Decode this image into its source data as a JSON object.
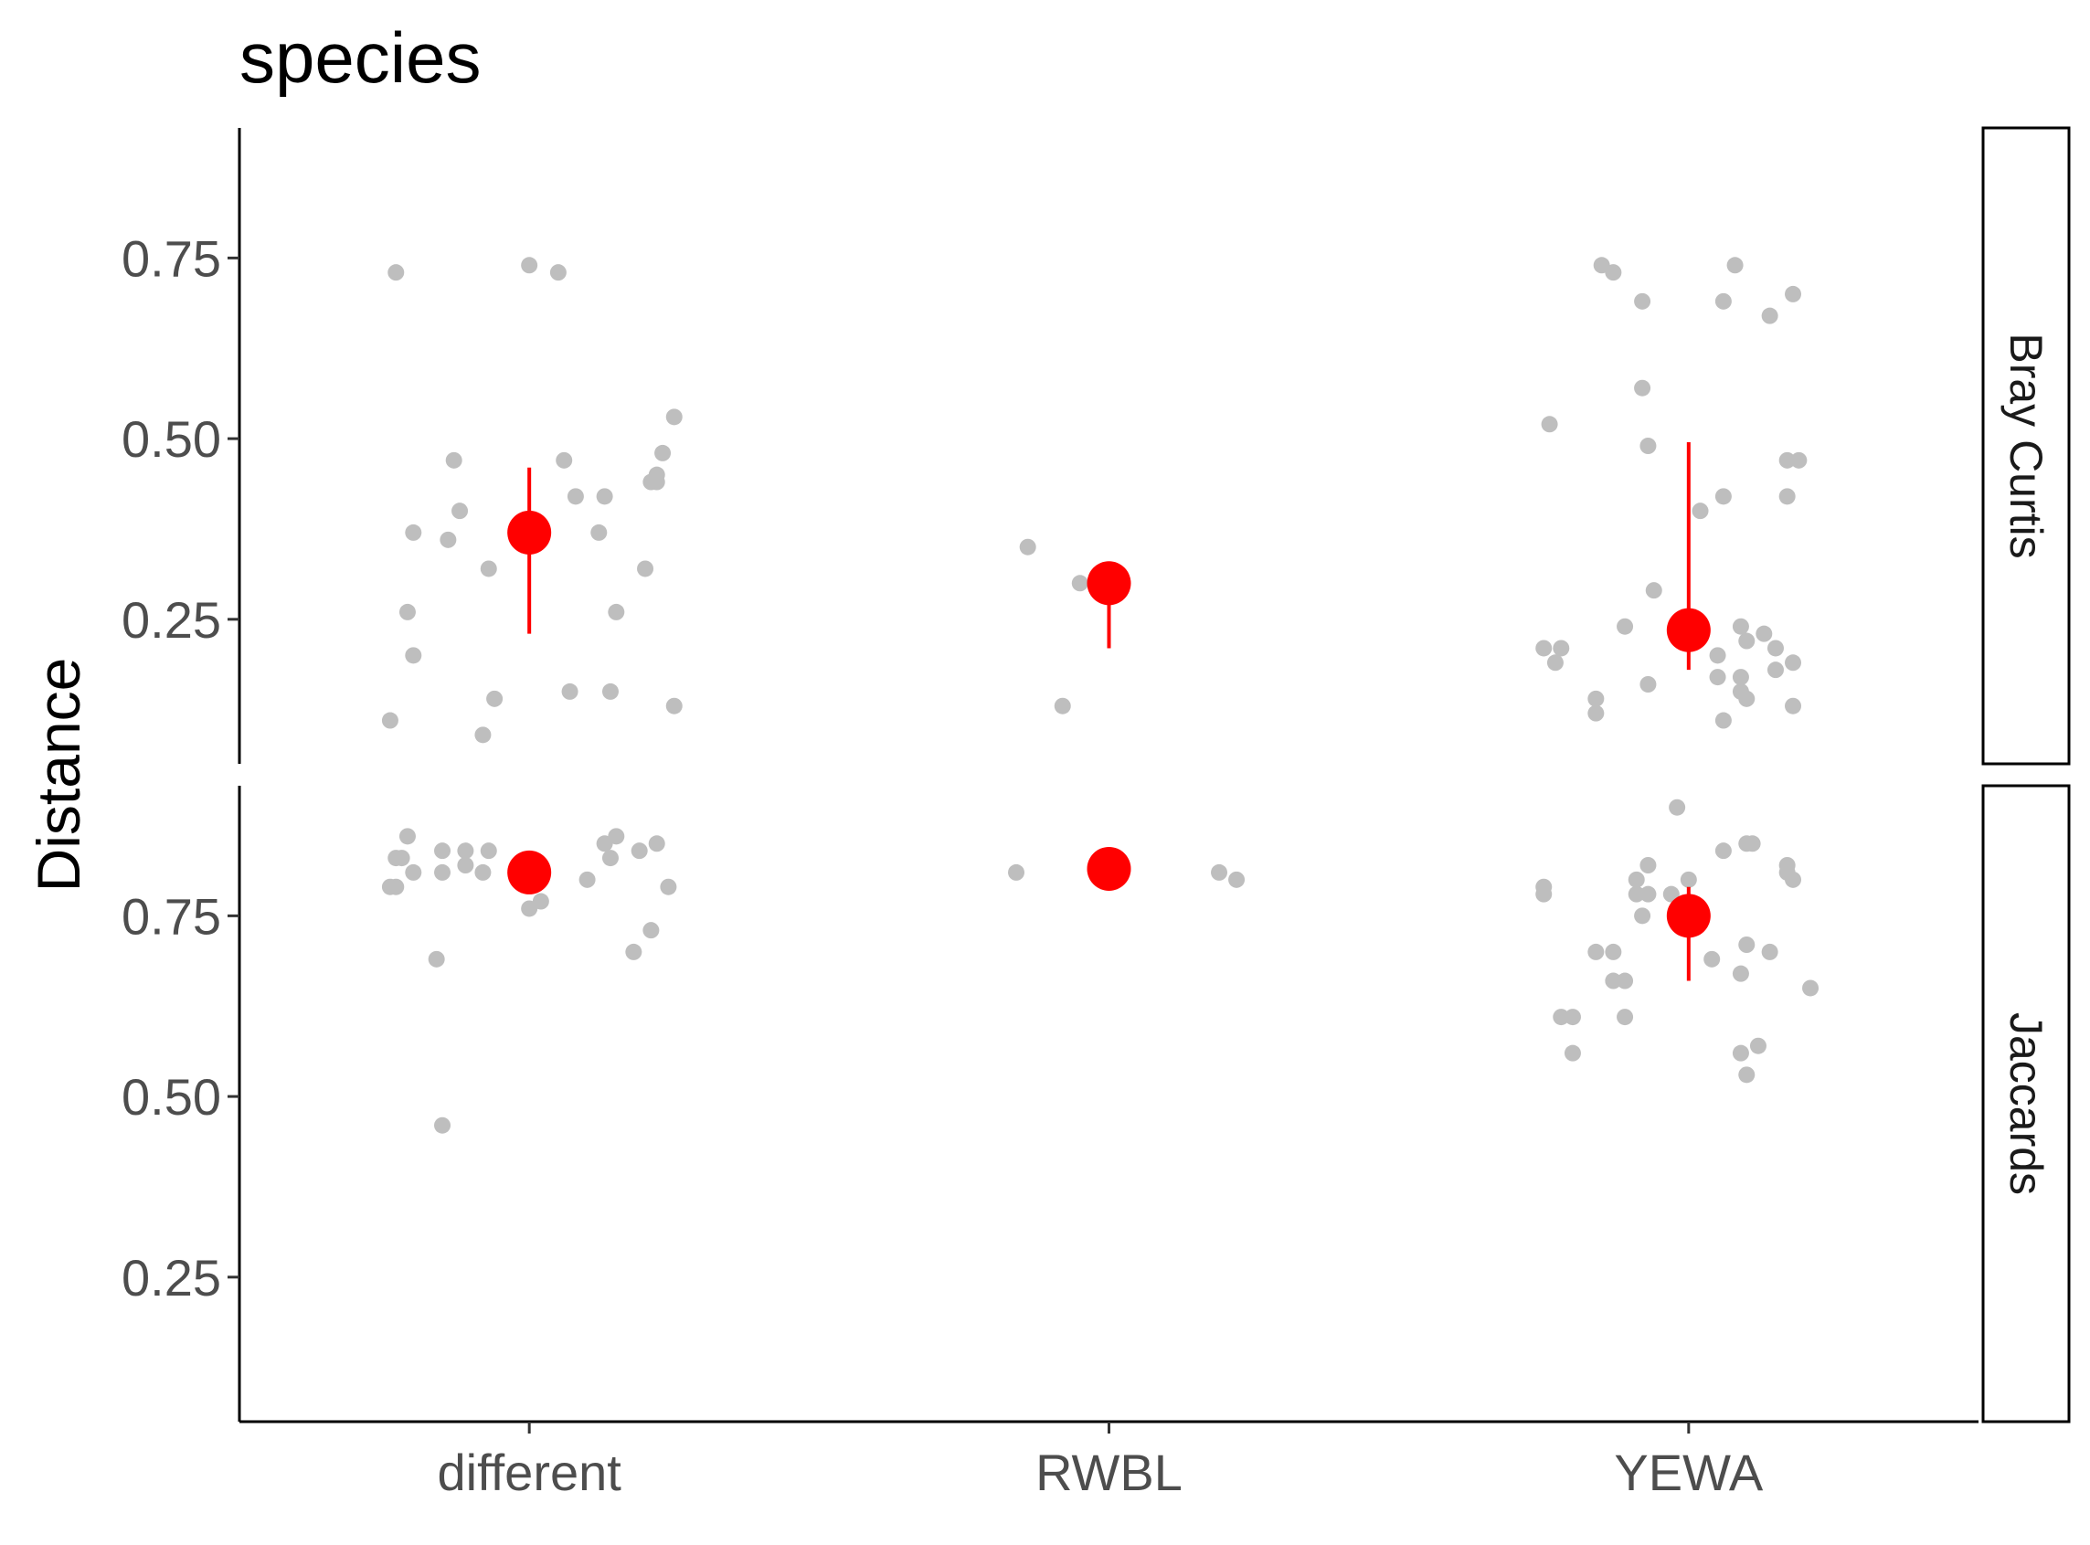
{
  "chart_data": {
    "type": "scatter",
    "title": "species",
    "xlabel": "",
    "ylabel": "Distance",
    "categories": [
      "different",
      "RWBL",
      "YEWA"
    ],
    "ylim": [
      0.05,
      0.93
    ],
    "yticks": [
      "0.25",
      "0.50",
      "0.75"
    ],
    "grid": false,
    "legend": "none",
    "point_color": "#bebebe",
    "summary_color": "#ff0000",
    "facets": [
      {
        "name": "Bray Curtis",
        "points": [
          {
            "category": "different",
            "offset": -0.24,
            "y": 0.11
          },
          {
            "category": "different",
            "offset": -0.23,
            "y": 0.73
          },
          {
            "category": "different",
            "offset": -0.21,
            "y": 0.26
          },
          {
            "category": "different",
            "offset": -0.2,
            "y": 0.2
          },
          {
            "category": "different",
            "offset": -0.2,
            "y": 0.37
          },
          {
            "category": "different",
            "offset": -0.14,
            "y": 0.36
          },
          {
            "category": "different",
            "offset": -0.13,
            "y": 0.47
          },
          {
            "category": "different",
            "offset": -0.12,
            "y": 0.4
          },
          {
            "category": "different",
            "offset": -0.08,
            "y": 0.09
          },
          {
            "category": "different",
            "offset": -0.07,
            "y": 0.32
          },
          {
            "category": "different",
            "offset": -0.06,
            "y": 0.14
          },
          {
            "category": "different",
            "offset": 0.0,
            "y": 0.74
          },
          {
            "category": "different",
            "offset": 0.05,
            "y": 0.73
          },
          {
            "category": "different",
            "offset": 0.06,
            "y": 0.47
          },
          {
            "category": "different",
            "offset": 0.07,
            "y": 0.15
          },
          {
            "category": "different",
            "offset": 0.08,
            "y": 0.42
          },
          {
            "category": "different",
            "offset": 0.12,
            "y": 0.37
          },
          {
            "category": "different",
            "offset": 0.13,
            "y": 0.42
          },
          {
            "category": "different",
            "offset": 0.14,
            "y": 0.15
          },
          {
            "category": "different",
            "offset": 0.15,
            "y": 0.26
          },
          {
            "category": "different",
            "offset": 0.2,
            "y": 0.32
          },
          {
            "category": "different",
            "offset": 0.21,
            "y": 0.44
          },
          {
            "category": "different",
            "offset": 0.22,
            "y": 0.44
          },
          {
            "category": "different",
            "offset": 0.22,
            "y": 0.45
          },
          {
            "category": "different",
            "offset": 0.23,
            "y": 0.48
          },
          {
            "category": "different",
            "offset": 0.25,
            "y": 0.13
          },
          {
            "category": "different",
            "offset": 0.25,
            "y": 0.53
          },
          {
            "category": "RWBL",
            "offset": -0.14,
            "y": 0.35
          },
          {
            "category": "RWBL",
            "offset": -0.08,
            "y": 0.13
          },
          {
            "category": "RWBL",
            "offset": -0.05,
            "y": 0.3
          },
          {
            "category": "YEWA",
            "offset": -0.25,
            "y": 0.21
          },
          {
            "category": "YEWA",
            "offset": -0.24,
            "y": 0.52
          },
          {
            "category": "YEWA",
            "offset": -0.23,
            "y": 0.19
          },
          {
            "category": "YEWA",
            "offset": -0.22,
            "y": 0.21
          },
          {
            "category": "YEWA",
            "offset": -0.16,
            "y": 0.14
          },
          {
            "category": "YEWA",
            "offset": -0.16,
            "y": 0.12
          },
          {
            "category": "YEWA",
            "offset": -0.15,
            "y": 0.74
          },
          {
            "category": "YEWA",
            "offset": -0.13,
            "y": 0.73
          },
          {
            "category": "YEWA",
            "offset": -0.11,
            "y": 0.24
          },
          {
            "category": "YEWA",
            "offset": -0.08,
            "y": 0.69
          },
          {
            "category": "YEWA",
            "offset": -0.08,
            "y": 0.57
          },
          {
            "category": "YEWA",
            "offset": -0.07,
            "y": 0.49
          },
          {
            "category": "YEWA",
            "offset": -0.07,
            "y": 0.16
          },
          {
            "category": "YEWA",
            "offset": -0.06,
            "y": 0.29
          },
          {
            "category": "YEWA",
            "offset": 0.02,
            "y": 0.4
          },
          {
            "category": "YEWA",
            "offset": 0.05,
            "y": 0.2
          },
          {
            "category": "YEWA",
            "offset": 0.05,
            "y": 0.17
          },
          {
            "category": "YEWA",
            "offset": 0.06,
            "y": 0.69
          },
          {
            "category": "YEWA",
            "offset": 0.06,
            "y": 0.42
          },
          {
            "category": "YEWA",
            "offset": 0.06,
            "y": 0.11
          },
          {
            "category": "YEWA",
            "offset": 0.08,
            "y": 0.74
          },
          {
            "category": "YEWA",
            "offset": 0.09,
            "y": 0.24
          },
          {
            "category": "YEWA",
            "offset": 0.09,
            "y": 0.15
          },
          {
            "category": "YEWA",
            "offset": 0.09,
            "y": 0.17
          },
          {
            "category": "YEWA",
            "offset": 0.1,
            "y": 0.14
          },
          {
            "category": "YEWA",
            "offset": 0.1,
            "y": 0.22
          },
          {
            "category": "YEWA",
            "offset": 0.13,
            "y": 0.23
          },
          {
            "category": "YEWA",
            "offset": 0.14,
            "y": 0.67
          },
          {
            "category": "YEWA",
            "offset": 0.15,
            "y": 0.18
          },
          {
            "category": "YEWA",
            "offset": 0.15,
            "y": 0.21
          },
          {
            "category": "YEWA",
            "offset": 0.17,
            "y": 0.42
          },
          {
            "category": "YEWA",
            "offset": 0.17,
            "y": 0.47
          },
          {
            "category": "YEWA",
            "offset": 0.18,
            "y": 0.7
          },
          {
            "category": "YEWA",
            "offset": 0.18,
            "y": 0.19
          },
          {
            "category": "YEWA",
            "offset": 0.18,
            "y": 0.13
          },
          {
            "category": "YEWA",
            "offset": 0.19,
            "y": 0.47
          }
        ],
        "summary": [
          {
            "category": "different",
            "y": 0.37,
            "ymin": 0.23,
            "ymax": 0.46
          },
          {
            "category": "RWBL",
            "y": 0.3,
            "ymin": 0.21,
            "ymax": 0.3
          },
          {
            "category": "YEWA",
            "y": 0.235,
            "ymin": 0.18,
            "ymax": 0.495
          }
        ]
      },
      {
        "name": "Jaccards",
        "points": [
          {
            "category": "different",
            "offset": -0.24,
            "y": 0.79
          },
          {
            "category": "different",
            "offset": -0.23,
            "y": 0.83
          },
          {
            "category": "different",
            "offset": -0.23,
            "y": 0.79
          },
          {
            "category": "different",
            "offset": -0.22,
            "y": 0.83
          },
          {
            "category": "different",
            "offset": -0.21,
            "y": 0.86
          },
          {
            "category": "different",
            "offset": -0.2,
            "y": 0.81
          },
          {
            "category": "different",
            "offset": -0.16,
            "y": 0.69
          },
          {
            "category": "different",
            "offset": -0.15,
            "y": 0.84
          },
          {
            "category": "different",
            "offset": -0.15,
            "y": 0.46
          },
          {
            "category": "different",
            "offset": -0.15,
            "y": 0.81
          },
          {
            "category": "different",
            "offset": -0.11,
            "y": 0.82
          },
          {
            "category": "different",
            "offset": -0.11,
            "y": 0.84
          },
          {
            "category": "different",
            "offset": -0.08,
            "y": 0.81
          },
          {
            "category": "different",
            "offset": -0.07,
            "y": 0.84
          },
          {
            "category": "different",
            "offset": 0.0,
            "y": 0.76
          },
          {
            "category": "different",
            "offset": 0.02,
            "y": 0.77
          },
          {
            "category": "different",
            "offset": 0.1,
            "y": 0.8
          },
          {
            "category": "different",
            "offset": 0.13,
            "y": 0.85
          },
          {
            "category": "different",
            "offset": 0.14,
            "y": 0.83
          },
          {
            "category": "different",
            "offset": 0.15,
            "y": 0.86
          },
          {
            "category": "different",
            "offset": 0.18,
            "y": 0.7
          },
          {
            "category": "different",
            "offset": 0.19,
            "y": 0.84
          },
          {
            "category": "different",
            "offset": 0.21,
            "y": 0.73
          },
          {
            "category": "different",
            "offset": 0.22,
            "y": 0.85
          },
          {
            "category": "different",
            "offset": 0.24,
            "y": 0.79
          },
          {
            "category": "RWBL",
            "offset": -0.16,
            "y": 0.81
          },
          {
            "category": "RWBL",
            "offset": 0.19,
            "y": 0.81
          },
          {
            "category": "RWBL",
            "offset": 0.22,
            "y": 0.8
          },
          {
            "category": "YEWA",
            "offset": -0.25,
            "y": 0.79
          },
          {
            "category": "YEWA",
            "offset": -0.25,
            "y": 0.78
          },
          {
            "category": "YEWA",
            "offset": -0.22,
            "y": 0.61
          },
          {
            "category": "YEWA",
            "offset": -0.2,
            "y": 0.61
          },
          {
            "category": "YEWA",
            "offset": -0.2,
            "y": 0.56
          },
          {
            "category": "YEWA",
            "offset": -0.16,
            "y": 0.7
          },
          {
            "category": "YEWA",
            "offset": -0.13,
            "y": 0.7
          },
          {
            "category": "YEWA",
            "offset": -0.13,
            "y": 0.66
          },
          {
            "category": "YEWA",
            "offset": -0.11,
            "y": 0.66
          },
          {
            "category": "YEWA",
            "offset": -0.11,
            "y": 0.61
          },
          {
            "category": "YEWA",
            "offset": -0.09,
            "y": 0.8
          },
          {
            "category": "YEWA",
            "offset": -0.09,
            "y": 0.78
          },
          {
            "category": "YEWA",
            "offset": -0.08,
            "y": 0.75
          },
          {
            "category": "YEWA",
            "offset": -0.07,
            "y": 0.82
          },
          {
            "category": "YEWA",
            "offset": -0.07,
            "y": 0.78
          },
          {
            "category": "YEWA",
            "offset": -0.02,
            "y": 0.9
          },
          {
            "category": "YEWA",
            "offset": -0.03,
            "y": 0.78
          },
          {
            "category": "YEWA",
            "offset": 0.0,
            "y": 0.8
          },
          {
            "category": "YEWA",
            "offset": 0.04,
            "y": 0.69
          },
          {
            "category": "YEWA",
            "offset": 0.06,
            "y": 0.84
          },
          {
            "category": "YEWA",
            "offset": 0.09,
            "y": 0.67
          },
          {
            "category": "YEWA",
            "offset": 0.09,
            "y": 0.56
          },
          {
            "category": "YEWA",
            "offset": 0.1,
            "y": 0.71
          },
          {
            "category": "YEWA",
            "offset": 0.1,
            "y": 0.53
          },
          {
            "category": "YEWA",
            "offset": 0.1,
            "y": 0.85
          },
          {
            "category": "YEWA",
            "offset": 0.11,
            "y": 0.85
          },
          {
            "category": "YEWA",
            "offset": 0.12,
            "y": 0.57
          },
          {
            "category": "YEWA",
            "offset": 0.14,
            "y": 0.7
          },
          {
            "category": "YEWA",
            "offset": 0.17,
            "y": 0.82
          },
          {
            "category": "YEWA",
            "offset": 0.17,
            "y": 0.81
          },
          {
            "category": "YEWA",
            "offset": 0.18,
            "y": 0.8
          },
          {
            "category": "YEWA",
            "offset": 0.21,
            "y": 0.65
          }
        ],
        "summary": [
          {
            "category": "different",
            "y": 0.81,
            "ymin": 0.81,
            "ymax": 0.81
          },
          {
            "category": "RWBL",
            "y": 0.815,
            "ymin": 0.815,
            "ymax": 0.815
          },
          {
            "category": "YEWA",
            "y": 0.75,
            "ymin": 0.66,
            "ymax": 0.79
          }
        ]
      }
    ]
  }
}
